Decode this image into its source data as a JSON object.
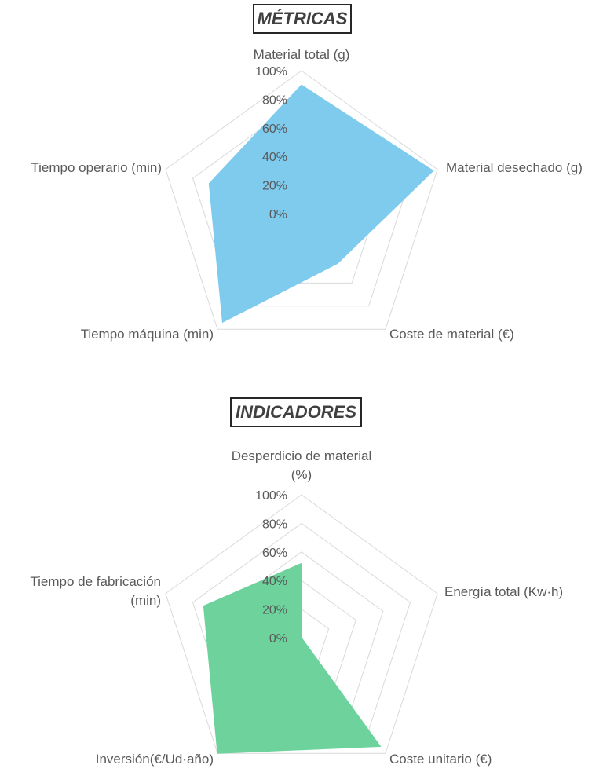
{
  "chart_data": [
    {
      "type": "radar",
      "title": "MÉTRICAS",
      "axes": [
        {
          "label": [
            "Material total (g)"
          ]
        },
        {
          "label": [
            "Material desechado (g)"
          ]
        },
        {
          "label": [
            "Coste de material (€)"
          ]
        },
        {
          "label": [
            "Tiempo máquina (min)"
          ]
        },
        {
          "label": [
            "Tiempo operario (min)"
          ]
        }
      ],
      "values": [
        90,
        97,
        43,
        94,
        68
      ],
      "rlim": [
        0,
        100
      ],
      "ticks": [
        "0%",
        "20%",
        "40%",
        "60%",
        "80%",
        "100%"
      ],
      "color": "#7ecbee"
    },
    {
      "type": "radar",
      "title": "INDICADORES",
      "axes": [
        {
          "label": [
            "Desperdicio de material",
            "(%)"
          ]
        },
        {
          "label": [
            "Energía total (Kw·h)"
          ]
        },
        {
          "label": [
            "Coste unitario (€)"
          ]
        },
        {
          "label": [
            "Inversión(€/Ud·año)"
          ]
        },
        {
          "label": [
            "Tiempo de fabricación",
            "(min)"
          ]
        }
      ],
      "values": [
        52,
        0,
        94,
        100,
        72
      ],
      "rlim": [
        0,
        100
      ],
      "ticks": [
        "0%",
        "20%",
        "40%",
        "60%",
        "80%",
        "100%"
      ],
      "color": "#6dd29c"
    }
  ]
}
